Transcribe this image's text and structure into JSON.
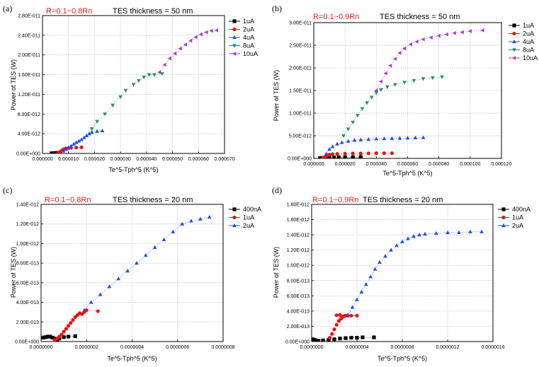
{
  "colors": {
    "black": "#000000",
    "red": "#ee1111",
    "blue": "#1f4fe8",
    "green": "#2e8b6a",
    "purple": "#a43fd6",
    "grid": "#b8b8e0"
  },
  "chart_data": [
    {
      "panel": "(a)",
      "type": "scatter",
      "title_red": "R=0.1~0.8Rn",
      "title_black": "TES thickness = 50 nm",
      "xlabel": "Te^5-Tph^5 (K^5)",
      "ylabel": "Power of TES (W)",
      "xlim": [
        0,
        7e-05
      ],
      "ylim": [
        0,
        2.8e-11
      ],
      "xticks": [
        0,
        1e-05,
        2e-05,
        3e-05,
        4e-05,
        5e-05,
        6e-05,
        7e-05
      ],
      "xtick_labels": [
        "0.000000",
        "0.000010",
        "0.000020",
        "0.000030",
        "0.000040",
        "0.000050",
        "0.000060",
        "0.000070"
      ],
      "yticks": [
        0,
        4e-12,
        8e-12,
        1.2e-11,
        1.6e-11,
        2e-11,
        2.4e-11,
        2.8e-11
      ],
      "ytick_labels": [
        "0.00E+000",
        "4.00E-012",
        "8.00E-012",
        "1.20E-011",
        "1.60E-011",
        "2.00E-011",
        "2.40E-011",
        "2.80E-011"
      ],
      "legend": "top-right",
      "series": [
        {
          "name": "1uA",
          "color": "black",
          "marker": "square",
          "x": [
            3.5e-06,
            4e-06,
            4.5e-06,
            5e-06,
            5.5e-06,
            6e-06,
            6.5e-06,
            5.2e-06,
            6.2e-06
          ],
          "y": [
            3e-14,
            5e-14,
            6e-14,
            8e-14,
            9e-14,
            1e-13,
            1.1e-13,
            7e-14,
            1.05e-13
          ]
        },
        {
          "name": "2uA",
          "color": "red",
          "marker": "circle",
          "x": [
            6e-06,
            6.5e-06,
            7e-06,
            7.5e-06,
            8e-06,
            8.5e-06,
            9e-06,
            1e-05,
            1.1e-05,
            1.3e-05,
            1.5e-05
          ],
          "y": [
            1e-13,
            2.5e-13,
            4e-13,
            6e-13,
            8e-13,
            9e-13,
            1e-12,
            1.1e-12,
            1.15e-12,
            1.2e-12,
            1.25e-12
          ]
        },
        {
          "name": "4uA",
          "color": "blue",
          "marker": "triangle-up",
          "x": [
            8e-06,
            9e-06,
            1e-05,
            1.1e-05,
            1.2e-05,
            1.3e-05,
            1.4e-05,
            1.5e-05,
            1.6e-05,
            1.7e-05,
            1.8e-05,
            1.9e-05,
            2.1e-05,
            2.3e-05
          ],
          "y": [
            5e-13,
            8e-13,
            1.2e-12,
            1.5e-12,
            1.9e-12,
            2.2e-12,
            2.5e-12,
            2.8e-12,
            3.2e-12,
            3.6e-12,
            4e-12,
            4.3e-12,
            4.5e-12,
            4.6e-12
          ]
        },
        {
          "name": "8uA",
          "color": "green",
          "marker": "triangle-down",
          "x": [
            1.9e-05,
            2.1e-05,
            2.4e-05,
            2.7e-05,
            3e-05,
            3.2e-05,
            3.5e-05,
            3.7e-05,
            3.9e-05,
            4.1e-05,
            4.3e-05,
            4.6e-05
          ],
          "y": [
            5e-12,
            6.5e-12,
            8e-12,
            9.8e-12,
            1.15e-11,
            1.28e-11,
            1.4e-11,
            1.48e-11,
            1.55e-11,
            1.6e-11,
            1.6e-11,
            1.62e-11
          ]
        },
        {
          "name": "10uA",
          "color": "purple",
          "marker": "triangle-left",
          "x": [
            4.5e-05,
            4.7e-05,
            4.9e-05,
            5.1e-05,
            5.3e-05,
            5.5e-05,
            5.7e-05,
            5.9e-05,
            6.1e-05,
            6.3e-05,
            6.5e-05,
            6.7e-05
          ],
          "y": [
            1.65e-11,
            1.8e-11,
            1.93e-11,
            2.03e-11,
            2.13e-11,
            2.21e-11,
            2.29e-11,
            2.36e-11,
            2.42e-11,
            2.46e-11,
            2.49e-11,
            2.5e-11
          ]
        }
      ]
    },
    {
      "panel": "(b)",
      "type": "scatter",
      "title_red": "R=0.1~0.9Rn",
      "title_black": "TES thickness = 50 nm",
      "xlabel": "Te^5-Tph^5 (K^5)",
      "ylabel": "Power of TES (W)",
      "xlim": [
        0,
        0.00012
      ],
      "ylim": [
        0,
        3e-11
      ],
      "xticks": [
        0,
        2e-05,
        4e-05,
        6e-05,
        8e-05,
        0.0001,
        0.00012
      ],
      "xtick_labels": [
        "0.000000",
        "0.000020",
        "0.000040",
        "0.000060",
        "0.000080",
        "0.000100",
        "0.000120"
      ],
      "yticks": [
        0,
        5e-12,
        1e-11,
        1.5e-11,
        2e-11,
        2.5e-11,
        3e-11
      ],
      "ytick_labels": [
        "0.00E+000",
        "5.00E-012",
        "1.00E-011",
        "1.50E-011",
        "2.00E-011",
        "2.50E-011",
        "3.00E-011"
      ],
      "legend": "top-right",
      "series": [
        {
          "name": "1uA",
          "color": "black",
          "marker": "square",
          "x": [
            4e-06,
            6e-06,
            8e-06,
            1e-05,
            1.3e-05,
            1.6e-05,
            2e-05,
            2.5e-05,
            3e-05
          ],
          "y": [
            5e-14,
            1e-13,
            1.5e-13,
            2e-13,
            2.2e-13,
            2.5e-13,
            2.6e-13,
            2.7e-13,
            2.8e-13
          ]
        },
        {
          "name": "2uA",
          "color": "red",
          "marker": "circle",
          "x": [
            6e-06,
            7e-06,
            8e-06,
            9e-06,
            1e-05,
            1.2e-05,
            1.5e-05,
            2e-05,
            2.5e-05,
            3e-05,
            3.5e-05,
            4e-05,
            4.5e-05,
            5e-05
          ],
          "y": [
            1e-13,
            3e-13,
            5e-13,
            7e-13,
            8.5e-13,
            9.5e-13,
            1e-12,
            1.05e-12,
            1.1e-12,
            1.1e-12,
            1.12e-12,
            1.15e-12,
            1.15e-12,
            1.15e-12
          ]
        },
        {
          "name": "4uA",
          "color": "blue",
          "marker": "triangle-up",
          "x": [
            8e-06,
            1e-05,
            1.2e-05,
            1.5e-05,
            1.8e-05,
            2.2e-05,
            2.6e-05,
            3e-05,
            3.5e-05,
            4e-05,
            4.5e-05,
            5e-05,
            5.5e-05,
            6e-05,
            6.5e-05,
            7e-05
          ],
          "y": [
            1e-12,
            2e-12,
            2.6e-12,
            3.2e-12,
            3.5e-12,
            3.8e-12,
            4e-12,
            4.1e-12,
            4.2e-12,
            4.3e-12,
            4.35e-12,
            4.4e-12,
            4.45e-12,
            4.5e-12,
            4.55e-12,
            4.6e-12
          ]
        },
        {
          "name": "8uA",
          "color": "green",
          "marker": "triangle-down",
          "x": [
            1.9e-05,
            2.2e-05,
            2.5e-05,
            2.8e-05,
            3.1e-05,
            3.4e-05,
            3.7e-05,
            4e-05,
            4.3e-05,
            4.7e-05,
            5.2e-05,
            5.8e-05,
            6.4e-05,
            7e-05,
            7.6e-05,
            8.2e-05
          ],
          "y": [
            5e-12,
            6.5e-12,
            8e-12,
            9.5e-12,
            1.1e-11,
            1.23e-11,
            1.35e-11,
            1.45e-11,
            1.52e-11,
            1.58e-11,
            1.63e-11,
            1.68e-11,
            1.72e-11,
            1.76e-11,
            1.78e-11,
            1.8e-11
          ]
        },
        {
          "name": "10uA",
          "color": "purple",
          "marker": "triangle-left",
          "x": [
            4e-05,
            4.3e-05,
            4.6e-05,
            4.9e-05,
            5.2e-05,
            5.5e-05,
            5.8e-05,
            6.2e-05,
            6.6e-05,
            7e-05,
            7.5e-05,
            8e-05,
            8.5e-05,
            9e-05,
            9.5e-05,
            0.0001,
            0.000108
          ],
          "y": [
            1.5e-11,
            1.7e-11,
            1.88e-11,
            2.05e-11,
            2.2e-11,
            2.33e-11,
            2.43e-11,
            2.52e-11,
            2.58e-11,
            2.63e-11,
            2.67e-11,
            2.71e-11,
            2.74e-11,
            2.77e-11,
            2.79e-11,
            2.81e-11,
            2.83e-11
          ]
        }
      ]
    },
    {
      "panel": "(c)",
      "type": "scatter",
      "title_red": "R=0.1~0.8Rn",
      "title_black": "TES thickness = 20 nm",
      "xlabel": "Te^5-Tph^5 (K^5)",
      "ylabel": "Power of TES (W)",
      "xlim": [
        0,
        8e-07
      ],
      "ylim": [
        0,
        1.4e-12
      ],
      "xticks": [
        0,
        2e-07,
        4e-07,
        6e-07,
        8e-07
      ],
      "xtick_labels": [
        "0.0000000",
        "0.0000002",
        "0.0000004",
        "0.0000006",
        "0.0000008"
      ],
      "yticks": [
        0,
        2e-13,
        4e-13,
        6e-13,
        8e-13,
        1e-12,
        1.2e-12,
        1.4e-12
      ],
      "ytick_labels": [
        "0.00E+000",
        "2.00E-013",
        "4.00E-013",
        "6.00E-013",
        "8.00E-013",
        "1.00E-012",
        "1.20E-012",
        "1.40E-012"
      ],
      "legend": "top-right",
      "series": [
        {
          "name": "400nA",
          "color": "black",
          "marker": "square",
          "x": [
            1e-08,
            2e-08,
            3e-08,
            4e-08,
            5e-08,
            6e-08,
            7e-08,
            8e-08,
            1e-07,
            1.2e-07,
            1.5e-07
          ],
          "y": [
            4e-14,
            4.5e-14,
            5e-14,
            5e-14,
            4e-14,
            3e-14,
            2e-14,
            3e-14,
            4.5e-14,
            5e-14,
            5.5e-14
          ]
        },
        {
          "name": "1uA",
          "color": "red",
          "marker": "circle",
          "x": [
            6e-08,
            7e-08,
            8e-08,
            9e-08,
            1e-07,
            1.1e-07,
            1.2e-07,
            1.3e-07,
            1.4e-07,
            1.5e-07,
            1.6e-07,
            1.7e-07,
            1.8e-07,
            1.9e-07,
            2e-07,
            2.5e-07
          ],
          "y": [
            1.5e-14,
            3e-14,
            5e-14,
            7e-14,
            1e-13,
            1.3e-13,
            1.6e-13,
            1.9e-13,
            2.2e-13,
            2.5e-13,
            2.7e-13,
            2.9e-13,
            2.8e-13,
            3e-13,
            3.2e-13,
            3.1e-13
          ]
        },
        {
          "name": "2uA",
          "color": "blue",
          "marker": "triangle-up",
          "x": [
            1.9e-07,
            2.2e-07,
            2.6e-07,
            3e-07,
            3.4e-07,
            3.8e-07,
            4.2e-07,
            4.6e-07,
            5e-07,
            5.4e-07,
            5.8e-07,
            6.2e-07,
            6.6e-07,
            7e-07,
            7.4e-07
          ],
          "y": [
            3.2e-13,
            4e-13,
            4.8e-13,
            5.6e-13,
            6.4e-13,
            7.2e-13,
            8e-13,
            8.8e-13,
            9.6e-13,
            1.04e-12,
            1.12e-12,
            1.2e-12,
            1.23e-12,
            1.25e-12,
            1.27e-12
          ]
        }
      ]
    },
    {
      "panel": "(d)",
      "type": "scatter",
      "title_red": "R=0.1~0.9Rn",
      "title_black": "TES thickness = 20 nm",
      "xlabel": "Te^5-Tph^5 (K^5)",
      "ylabel": "Power of TES (W)",
      "xlim": [
        0,
        1.6e-06
      ],
      "ylim": [
        0,
        1.8e-12
      ],
      "xticks": [
        0,
        4e-07,
        8e-07,
        1.2e-06,
        1.6e-06
      ],
      "xtick_labels": [
        "0.0000000",
        "0.0000004",
        "0.0000008",
        "0.0000012",
        "0.0000016"
      ],
      "yticks": [
        0,
        2e-13,
        4e-13,
        6e-13,
        8e-13,
        1e-12,
        1.2e-12,
        1.4e-12,
        1.6e-12,
        1.8e-12
      ],
      "ytick_labels": [
        "0.00E+000",
        "2.00E-013",
        "4.00E-013",
        "6.00E-013",
        "8.00E-013",
        "1.00E-012",
        "1.20E-012",
        "1.40E-012",
        "1.60E-012",
        "1.80E-012"
      ],
      "legend": "top-right",
      "series": [
        {
          "name": "400nA",
          "color": "black",
          "marker": "square",
          "x": [
            1e-08,
            3e-08,
            6e-08,
            1e-07,
            1.5e-07,
            2e-07,
            2.5e-07,
            3e-07,
            3.5e-07,
            4e-07,
            4.5e-07,
            5.5e-07
          ],
          "y": [
            3e-14,
            2e-14,
            1e-14,
            1.5e-14,
            2e-14,
            3e-14,
            4e-14,
            4.5e-14,
            5e-14,
            5e-14,
            5.5e-14,
            5.5e-14
          ]
        },
        {
          "name": "1uA",
          "color": "red",
          "marker": "circle",
          "x": [
            1.6e-07,
            1.8e-07,
            2e-07,
            2.2e-07,
            2.4e-07,
            2.6e-07,
            2.7e-07,
            2.8e-07,
            2.9e-07,
            3e-07,
            3.2e-07,
            3.5e-07,
            4e-07,
            2.5e-07,
            2.2e-07
          ],
          "y": [
            5e-14,
            1e-13,
            1.6e-13,
            2.2e-13,
            2.7e-13,
            3e-13,
            3.2e-13,
            3.3e-13,
            3.35e-13,
            3.4e-13,
            3.4e-13,
            3.4e-13,
            3.4e-13,
            3.5e-13,
            3.45e-13
          ]
        },
        {
          "name": "2uA",
          "color": "blue",
          "marker": "triangle-up",
          "x": [
            3.2e-07,
            3.6e-07,
            4e-07,
            4.4e-07,
            4.8e-07,
            5.2e-07,
            5.6e-07,
            6e-07,
            6.5e-07,
            7e-07,
            7.5e-07,
            8e-07,
            8.5e-07,
            9e-07,
            9.5e-07,
            1e-06,
            1.1e-06,
            1.2e-06,
            1.3e-06,
            1.4e-06,
            1.5e-06
          ],
          "y": [
            3.5e-13,
            4.5e-13,
            5.5e-13,
            6.5e-13,
            7.5e-13,
            8.5e-13,
            9.5e-13,
            1.04e-12,
            1.12e-12,
            1.2e-12,
            1.26e-12,
            1.31e-12,
            1.35e-12,
            1.38e-12,
            1.4e-12,
            1.41e-12,
            1.42e-12,
            1.43e-12,
            1.43e-12,
            1.44e-12,
            1.44e-12
          ]
        }
      ]
    }
  ]
}
